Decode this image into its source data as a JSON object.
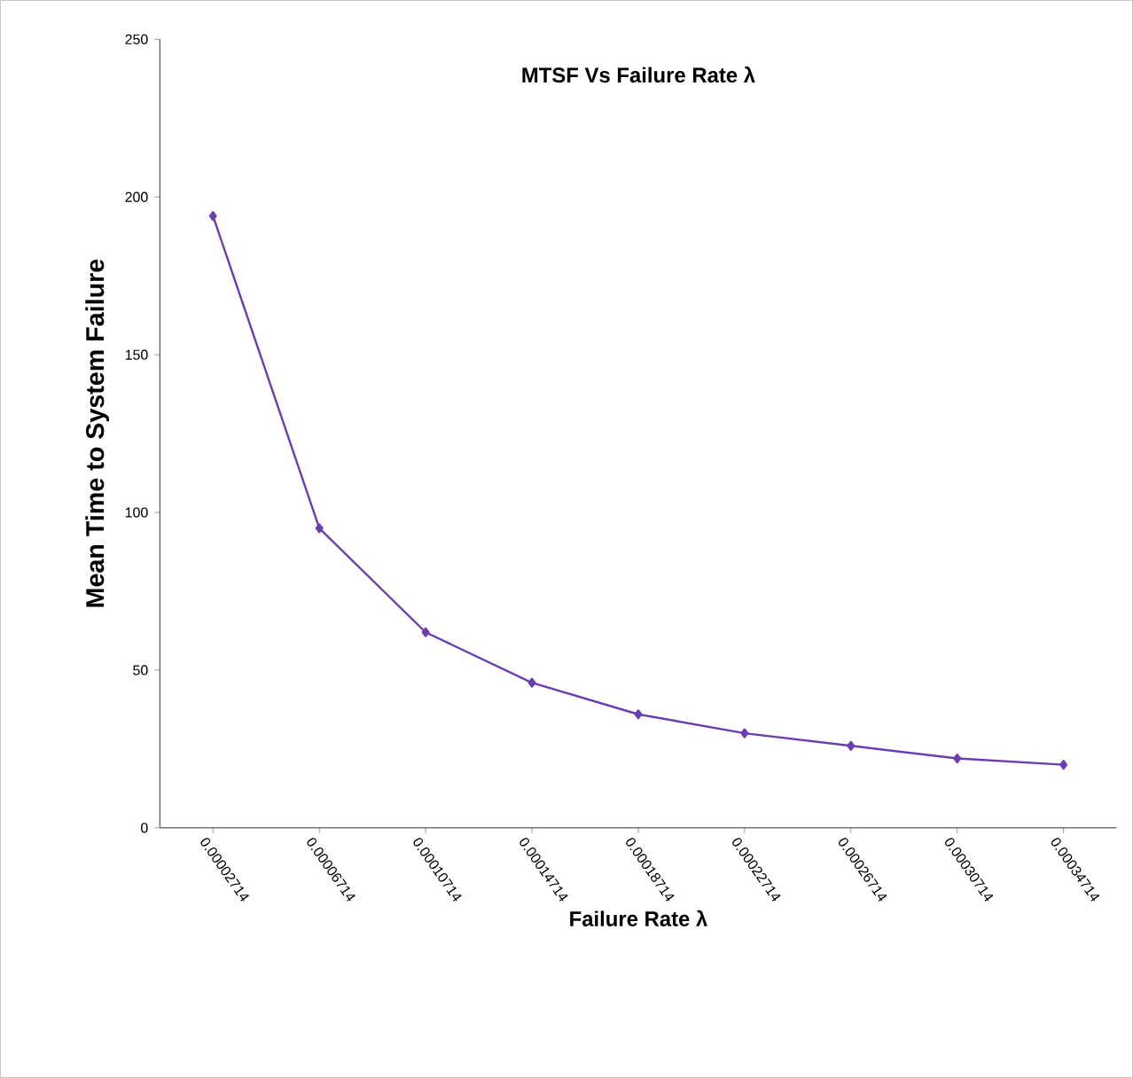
{
  "chart_data": {
    "type": "line",
    "title": "MTSF Vs Failure Rate λ",
    "xlabel": "Failure Rate λ",
    "ylabel": "Mean Time to System Failure",
    "categories": [
      "0.00002714",
      "0.00006714",
      "0.00010714",
      "0.00014714",
      "0.00018714",
      "0.00022714",
      "0.00026714",
      "0.00030714",
      "0.00034714"
    ],
    "series": [
      {
        "color": "#6a3db0",
        "values": [
          194,
          95,
          62,
          46,
          36,
          30,
          26,
          22,
          20
        ]
      }
    ],
    "ylim": [
      0,
      250
    ],
    "yticks": [
      0,
      50,
      100,
      150,
      200,
      250
    ],
    "grid": false,
    "marker": "diamond",
    "line_style": "solid"
  }
}
